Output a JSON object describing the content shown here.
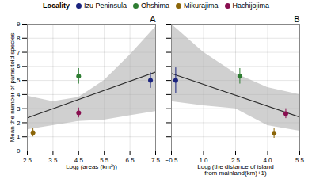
{
  "chart_data": [
    {
      "type": "scatter",
      "title": "A",
      "xlabel": "Logₑ (areas (km²))",
      "ylabel": "Mean the number of parasitoid species",
      "xlim": [
        2.5,
        7.5
      ],
      "ylim": [
        0,
        9
      ],
      "xticks": [
        2.5,
        3.5,
        4.5,
        5.5,
        6.5,
        7.5
      ],
      "yticks": [
        0,
        1,
        2,
        3,
        4,
        5,
        6,
        7,
        8,
        9
      ],
      "grid": true,
      "legend": "top",
      "legend_title": "Locality",
      "series": [
        {
          "name": "Izu Peninsula",
          "color": "#1A237E",
          "x": [
            7.3
          ],
          "values": [
            5.0
          ],
          "yerr_lo": [
            0.55
          ],
          "yerr_hi": [
            0.55
          ]
        },
        {
          "name": "Ohshima",
          "color": "#2E7D32",
          "x": [
            4.5
          ],
          "values": [
            5.3
          ],
          "yerr_lo": [
            0.55
          ],
          "yerr_hi": [
            0.55
          ]
        },
        {
          "name": "Mikurajima",
          "color": "#8B6508",
          "x": [
            2.72
          ],
          "values": [
            1.3
          ],
          "yerr_lo": [
            0.3
          ],
          "yerr_hi": [
            0.3
          ]
        },
        {
          "name": "Hachijojima",
          "color": "#880E4F",
          "x": [
            4.5
          ],
          "values": [
            2.7
          ],
          "yerr_lo": [
            0.35
          ],
          "yerr_hi": [
            0.35
          ]
        }
      ],
      "fit_line": {
        "x": [
          2.5,
          7.5
        ],
        "values": [
          2.35,
          5.6
        ],
        "color": "#2B2B2B"
      },
      "confidence_band": {
        "x": [
          2.5,
          3.5,
          4.5,
          5.5,
          6.5,
          7.5
        ],
        "upper": [
          3.9,
          3.5,
          3.8,
          5.0,
          6.8,
          8.8
        ],
        "lower": [
          1.5,
          1.8,
          2.1,
          2.2,
          2.5,
          2.8
        ],
        "color": "#AAAAAA"
      }
    },
    {
      "type": "scatter",
      "title": "B",
      "xlabel": "Logₑ (the distance of island\nfrom mainland(km)+1)",
      "xlim": [
        -0.5,
        5.5
      ],
      "ylim": [
        0,
        9
      ],
      "xticks": [
        -0.5,
        {
          "value": 1,
          "label": "1.0"
        },
        2.5,
        {
          "value": 4,
          "label": "4.0"
        },
        5.5
      ],
      "yticks": [
        0,
        1,
        2,
        3,
        4,
        5,
        6,
        7,
        8,
        9
      ],
      "grid": true,
      "legend": false,
      "tick_labels": "x",
      "series": [
        {
          "name": "Izu Peninsula",
          "color": "#1A237E",
          "x": [
            -0.3
          ],
          "values": [
            5.0
          ],
          "yerr_lo": [
            0.9
          ],
          "yerr_hi": [
            0.9
          ]
        },
        {
          "name": "Ohshima",
          "color": "#2E7D32",
          "x": [
            2.7
          ],
          "values": [
            5.3
          ],
          "yerr_lo": [
            0.55
          ],
          "yerr_hi": [
            0.55
          ]
        },
        {
          "name": "Mikurajima",
          "color": "#8B6508",
          "x": [
            4.3
          ],
          "values": [
            1.25
          ],
          "yerr_lo": [
            0.35
          ],
          "yerr_hi": [
            0.35
          ]
        },
        {
          "name": "Hachijojima",
          "color": "#880E4F",
          "x": [
            4.85
          ],
          "values": [
            2.65
          ],
          "yerr_lo": [
            0.35
          ],
          "yerr_hi": [
            0.35
          ]
        }
      ],
      "fit_line": {
        "x": [
          -0.5,
          5.5
        ],
        "values": [
          5.5,
          2.4
        ],
        "color": "#2B2B2B"
      },
      "confidence_band": {
        "x": [
          -0.5,
          1.0,
          2.5,
          4.0,
          5.5
        ],
        "upper": [
          9.0,
          7.0,
          5.5,
          4.5,
          4.0
        ],
        "lower": [
          3.5,
          3.2,
          3.0,
          1.8,
          1.4
        ],
        "color": "#AAAAAA"
      }
    }
  ]
}
